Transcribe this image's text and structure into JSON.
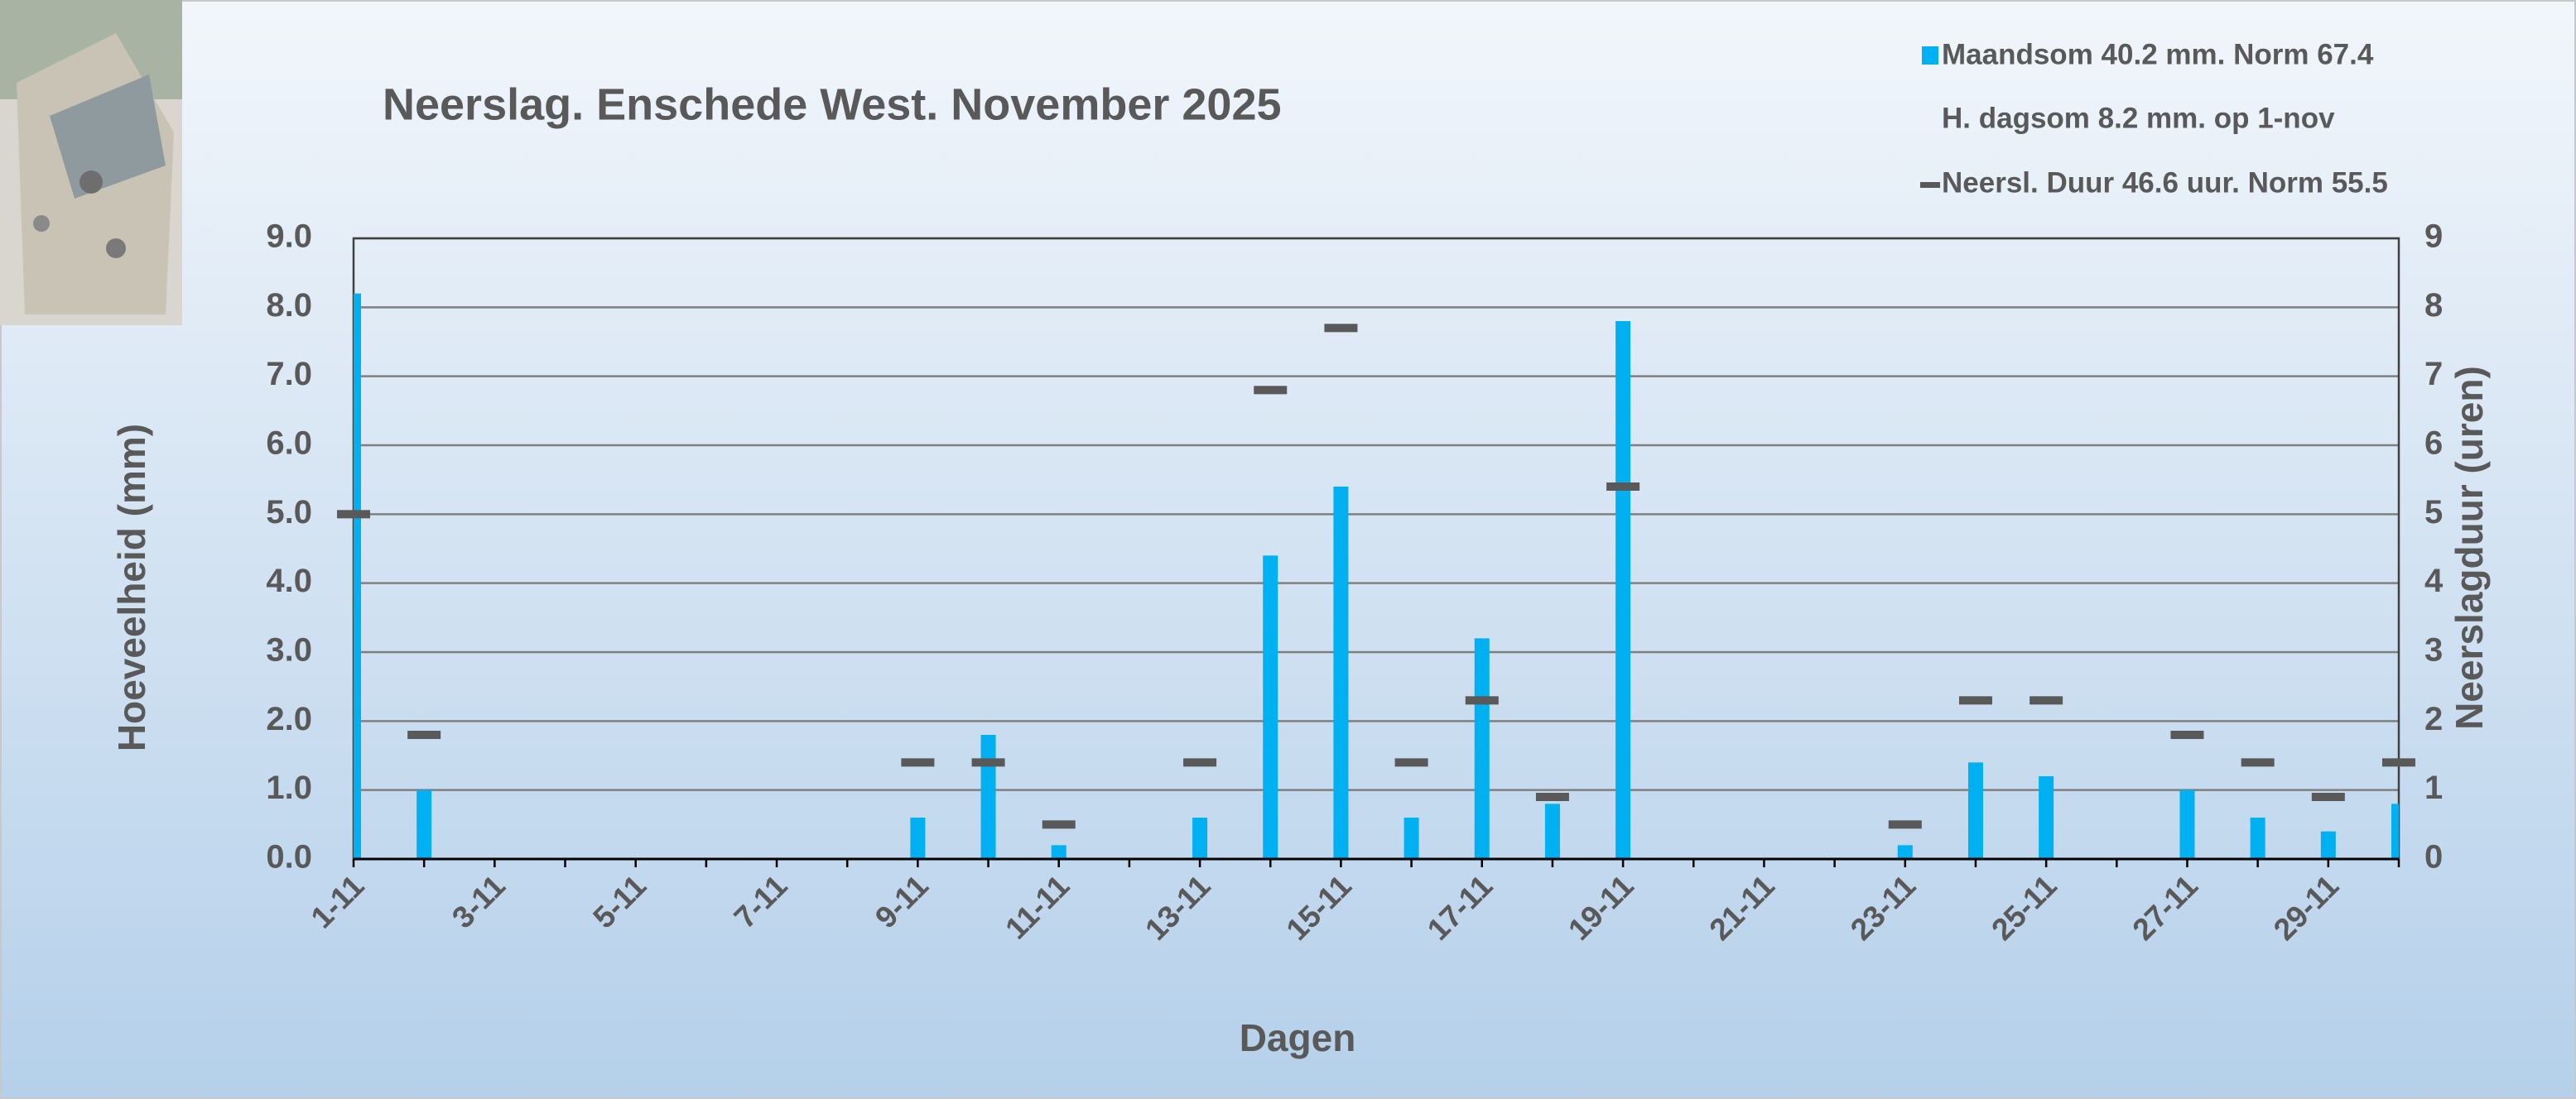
{
  "chart_data": {
    "type": "bar",
    "title": "Neerslag. Enschede West. November 2025",
    "x_label": "Dagen",
    "y_label": "Hoeveelheid (mm)",
    "y2_label": "Neerslagduur (uren)",
    "annotation": "H. dagsom 8.2 mm.  op  1-nov",
    "categories": [
      "1-11",
      null,
      "3-11",
      null,
      "5-11",
      null,
      "7-11",
      null,
      "9-11",
      null,
      "11-11",
      null,
      "13-11",
      null,
      "15-11",
      null,
      "17-11",
      null,
      "19-11",
      null,
      "21-11",
      null,
      "23-11",
      null,
      "25-11",
      null,
      "27-11",
      null,
      "29-11",
      null
    ],
    "series": [
      {
        "name": "Maandsom 40.2 mm. Norm 67.4",
        "color": "#00b0f0",
        "values": [
          8.2,
          1.0,
          0,
          0,
          0,
          0,
          0,
          0,
          0.6,
          1.8,
          0.2,
          0,
          0.6,
          4.4,
          5.4,
          0.6,
          3.2,
          0.8,
          7.8,
          0,
          0,
          0,
          0.2,
          1.4,
          1.2,
          0,
          1.0,
          0.6,
          0.4,
          0.8
        ]
      },
      {
        "name": "Neersl. Duur 46.6 uur. Norm 55.5",
        "color": "#595959",
        "axis": "y2",
        "marker": "dash",
        "values": [
          5.0,
          1.8,
          null,
          null,
          null,
          null,
          null,
          null,
          1.4,
          1.4,
          0.5,
          null,
          1.4,
          6.8,
          7.7,
          1.4,
          2.3,
          0.9,
          5.4,
          null,
          null,
          null,
          0.5,
          2.3,
          2.3,
          null,
          1.8,
          1.4,
          0.9,
          1.4
        ]
      }
    ],
    "ylim": [
      0,
      9
    ],
    "yticks": [
      {
        "value": 0,
        "label": "0.0"
      },
      {
        "value": 1,
        "label": "1.0"
      },
      {
        "value": 2,
        "label": "2.0"
      },
      {
        "value": 3,
        "label": "3.0"
      },
      {
        "value": 4,
        "label": "4.0"
      },
      {
        "value": 5,
        "label": "5.0"
      },
      {
        "value": 6,
        "label": "6.0"
      },
      {
        "value": 7,
        "label": "7.0"
      },
      {
        "value": 8,
        "label": "8.0"
      },
      {
        "value": 9,
        "label": "9.0"
      }
    ],
    "y2lim": [
      0,
      9
    ],
    "y2ticks": [
      0,
      1,
      2,
      3,
      4,
      5,
      6,
      7,
      8,
      9
    ],
    "grid": true
  }
}
